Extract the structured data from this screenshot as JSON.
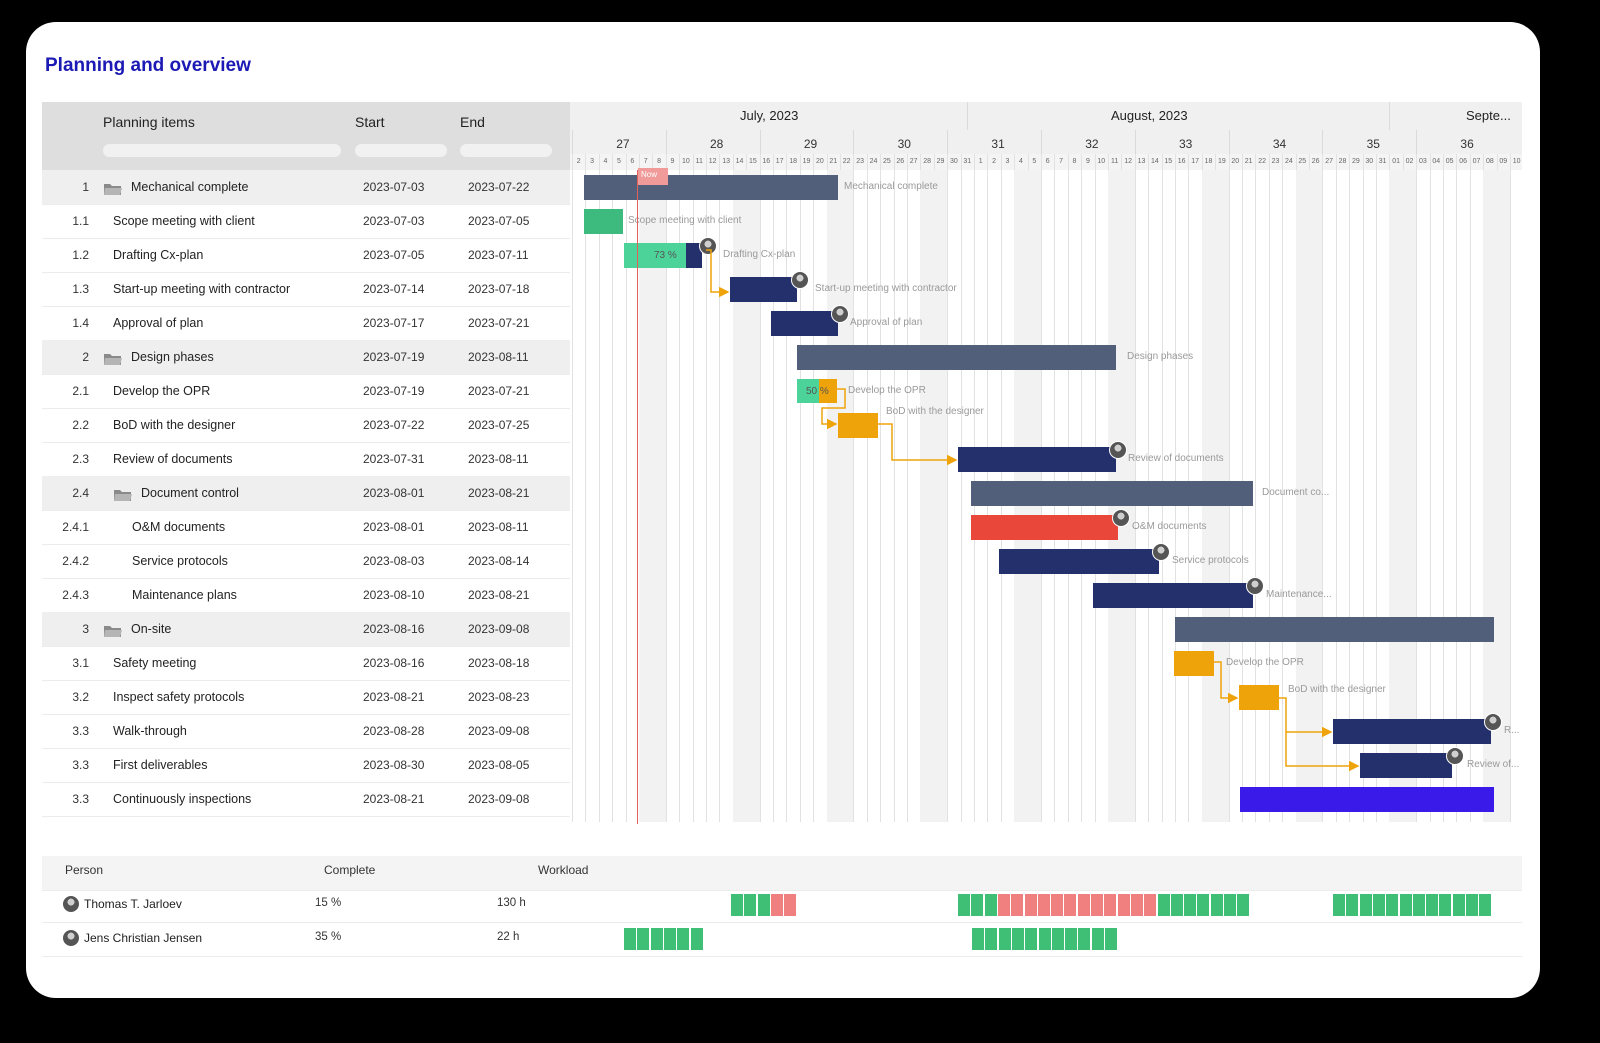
{
  "title": "Planning and overview",
  "columns": {
    "items": "Planning items",
    "start": "Start",
    "end": "End"
  },
  "months": [
    "July, 2023",
    "August, 2023",
    "Septe..."
  ],
  "weeks": [
    "27",
    "28",
    "29",
    "30",
    "31",
    "32",
    "33",
    "34",
    "35",
    "36"
  ],
  "days": [
    "2",
    "3",
    "4",
    "5",
    "6",
    "7",
    "8",
    "9",
    "10",
    "11",
    "12",
    "13",
    "14",
    "15",
    "16",
    "17",
    "18",
    "19",
    "20",
    "21",
    "22",
    "23",
    "24",
    "25",
    "26",
    "27",
    "28",
    "29",
    "30",
    "31",
    "1",
    "2",
    "3",
    "4",
    "5",
    "6",
    "7",
    "8",
    "9",
    "10",
    "11",
    "12",
    "13",
    "14",
    "15",
    "16",
    "17",
    "18",
    "19",
    "20",
    "21",
    "22",
    "23",
    "24",
    "25",
    "26",
    "27",
    "28",
    "29",
    "30",
    "31",
    "01",
    "02",
    "03",
    "04",
    "05",
    "06",
    "07",
    "08",
    "09",
    "10"
  ],
  "now_label": "Now",
  "rows": [
    {
      "num": "1",
      "name": "Mechanical complete",
      "start": "2023-07-03",
      "end": "2023-07-22",
      "group": true,
      "bar_label": "Mechanical complete"
    },
    {
      "num": "1.1",
      "name": "Scope meeting with client",
      "start": "2023-07-03",
      "end": "2023-07-05",
      "bar_label": "Scope meeting with client"
    },
    {
      "num": "1.2",
      "name": "Drafting Cx-plan",
      "start": "2023-07-05",
      "end": "2023-07-11",
      "bar_label": "Drafting Cx-plan",
      "progress": "73 %"
    },
    {
      "num": "1.3",
      "name": "Start-up meeting with contractor",
      "start": "2023-07-14",
      "end": "2023-07-18",
      "bar_label": "Start-up meeting with contractor"
    },
    {
      "num": "1.4",
      "name": "Approval of plan",
      "start": "2023-07-17",
      "end": "2023-07-21",
      "bar_label": "Approval of plan"
    },
    {
      "num": "2",
      "name": "Design phases",
      "start": "2023-07-19",
      "end": "2023-08-11",
      "group": true,
      "bar_label": "Design phases"
    },
    {
      "num": "2.1",
      "name": "Develop the OPR",
      "start": "2023-07-19",
      "end": "2023-07-21",
      "bar_label": "Develop the OPR",
      "progress": "50 %"
    },
    {
      "num": "2.2",
      "name": "BoD with the designer",
      "start": "2023-07-22",
      "end": "2023-07-25",
      "bar_label": "BoD with the designer"
    },
    {
      "num": "2.3",
      "name": "Review of documents",
      "start": "2023-07-31",
      "end": "2023-08-11",
      "bar_label": "Review of documents"
    },
    {
      "num": "2.4",
      "name": "Document control",
      "start": "2023-08-01",
      "end": "2023-08-21",
      "group": true,
      "bar_label": "Document co..."
    },
    {
      "num": "2.4.1",
      "name": "O&M documents",
      "start": "2023-08-01",
      "end": "2023-08-11",
      "bar_label": "O&M documents"
    },
    {
      "num": "2.4.2",
      "name": "Service protocols",
      "start": "2023-08-03",
      "end": "2023-08-14",
      "bar_label": "Service protocols"
    },
    {
      "num": "2.4.3",
      "name": "Maintenance plans",
      "start": "2023-08-10",
      "end": "2023-08-21",
      "bar_label": "Maintenance..."
    },
    {
      "num": "3",
      "name": "On-site",
      "start": "2023-08-16",
      "end": "2023-09-08",
      "group": true,
      "bar_label": ""
    },
    {
      "num": "3.1",
      "name": "Safety meeting",
      "start": "2023-08-16",
      "end": "2023-08-18",
      "bar_label": "Develop the OPR"
    },
    {
      "num": "3.2",
      "name": "Inspect safety protocols",
      "start": "2023-08-21",
      "end": "2023-08-23",
      "bar_label": "BoD with the designer"
    },
    {
      "num": "3.3",
      "name": "Walk-through",
      "start": "2023-08-28",
      "end": "2023-09-08",
      "bar_label": "R..."
    },
    {
      "num": "3.3",
      "name": "First deliverables",
      "start": "2023-08-30",
      "end": "2023-08-05",
      "bar_label": "Review of..."
    },
    {
      "num": "3.3",
      "name": "Continuously inspections",
      "start": "2023-08-21",
      "end": "2023-09-08",
      "bar_label": ""
    }
  ],
  "workload": {
    "headers": {
      "person": "Person",
      "complete": "Complete",
      "workload": "Workload"
    },
    "people": [
      {
        "name": "Thomas T. Jarloev",
        "complete": "15 %",
        "hours": "130 h"
      },
      {
        "name": "Jens Christian Jensen",
        "complete": "35 %",
        "hours": "22 h"
      }
    ]
  },
  "colors": {
    "title": "#1c1ab4",
    "group_bar": "#525f7b",
    "task_bar": "#24306b",
    "done_bar": "#3dbb7f",
    "progress_fill": "#4bd39a",
    "warning_bar": "#efa30a",
    "danger_bar": "#e8473a",
    "highlight_bar": "#3a1ae8",
    "workload_ok": "#3fbe76",
    "workload_over": "#f08080",
    "now_line": "#e0605a"
  }
}
